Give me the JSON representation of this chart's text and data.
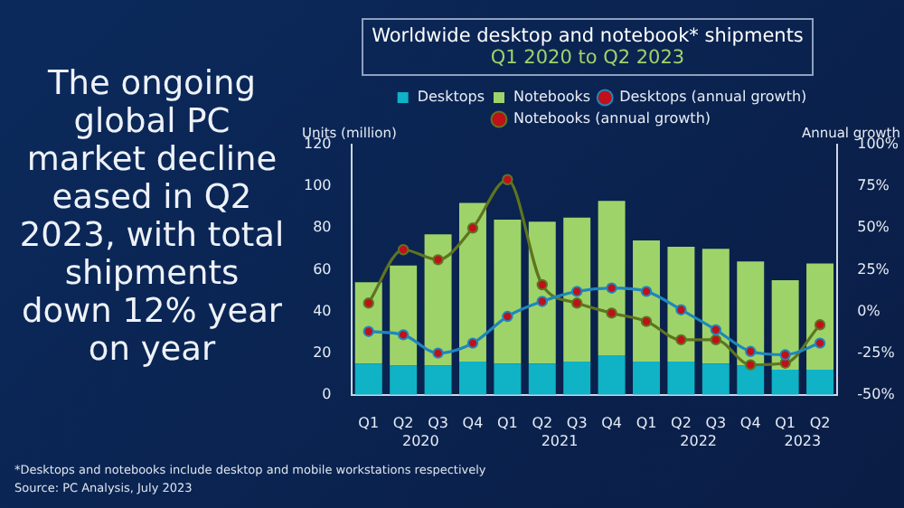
{
  "chart_data": {
    "type": "bar",
    "stacked": true,
    "title": "Worldwide desktop and notebook* shipments",
    "subtitle": "Q1 2020 to Q2 2023",
    "ylabel": "Units (million)",
    "y2label": "Annual growth",
    "categories": [
      "Q1",
      "Q2",
      "Q3",
      "Q4",
      "Q1",
      "Q2",
      "Q3",
      "Q4",
      "Q1",
      "Q2",
      "Q3",
      "Q4",
      "Q1",
      "Q2"
    ],
    "series": [
      {
        "name": "Desktops",
        "color": "#10b2c6",
        "values": [
          15,
          14,
          14,
          16,
          15,
          15,
          16,
          19,
          16,
          16,
          15,
          14,
          12,
          12
        ]
      },
      {
        "name": "Notebooks",
        "color": "#9ed36a",
        "values": [
          39,
          48,
          63,
          76,
          69,
          68,
          69,
          74,
          58,
          55,
          55,
          50,
          43,
          51
        ]
      },
      {
        "name": "Desktops (annual growth)",
        "type": "line",
        "axis": "y2",
        "color": "#1f86bd",
        "values": [
          -12,
          -14,
          -25,
          -19,
          -3,
          6,
          12,
          14,
          12,
          1,
          -11,
          -24,
          -26,
          -19
        ]
      },
      {
        "name": "Notebooks (annual growth)",
        "type": "line",
        "axis": "y2",
        "color": "#5f7420",
        "values": [
          5,
          37,
          31,
          50,
          79,
          16,
          5,
          -1,
          -6,
          -17,
          -17,
          -32,
          -31,
          -8
        ]
      }
    ],
    "ylim": [
      0,
      120
    ],
    "yticks": [
      0,
      20,
      40,
      60,
      80,
      100,
      120
    ],
    "y2lim": [
      -50,
      100
    ],
    "y2ticks": [
      {
        "value": -50,
        "label": "-50%"
      },
      {
        "value": -25,
        "label": "-25%"
      },
      {
        "value": 0,
        "label": "0%"
      },
      {
        "value": 25,
        "label": "25%"
      },
      {
        "value": 50,
        "label": "50%"
      },
      {
        "value": 75,
        "label": "75%"
      },
      {
        "value": 100,
        "label": "100%"
      }
    ],
    "marker": "circle",
    "legend": "top",
    "grid": false,
    "annotations": [
      "The ongoing global PC market decline eased in Q2 2023, with total shipments down 12% year on year",
      "2020",
      "2021",
      "2022",
      "2023",
      "*Desktops and notebooks include desktop and mobile workstations respectively",
      "Source: PC Analysis, July 2023"
    ]
  }
}
